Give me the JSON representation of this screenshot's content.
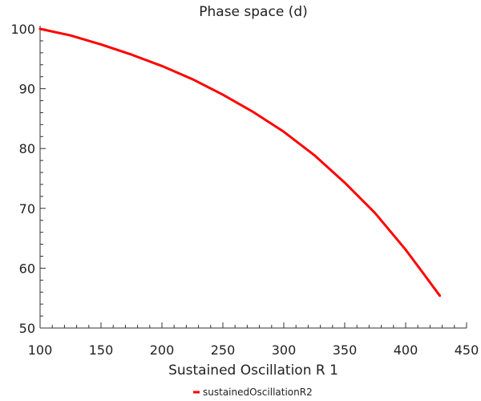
{
  "chart_data": {
    "type": "line",
    "title": "Phase space (d)",
    "xlabel": "Sustained Oscillation R 1",
    "ylabel": "",
    "xlim": [
      100,
      450
    ],
    "ylim": [
      50,
      100
    ],
    "xticks": [
      100,
      150,
      200,
      250,
      300,
      350,
      400,
      450
    ],
    "yticks": [
      50,
      60,
      70,
      80,
      90,
      100
    ],
    "grid": false,
    "legend_position": "bottom",
    "series": [
      {
        "name": "sustainedOscillationR2",
        "color": "#ff0000",
        "x": [
          100,
          125,
          150,
          175,
          200,
          225,
          250,
          275,
          300,
          325,
          350,
          375,
          400,
          415,
          428
        ],
        "y": [
          100,
          98.9,
          97.4,
          95.7,
          93.8,
          91.6,
          89.0,
          86.1,
          82.8,
          78.9,
          74.3,
          69.2,
          63.1,
          59.0,
          55.4
        ]
      }
    ]
  }
}
